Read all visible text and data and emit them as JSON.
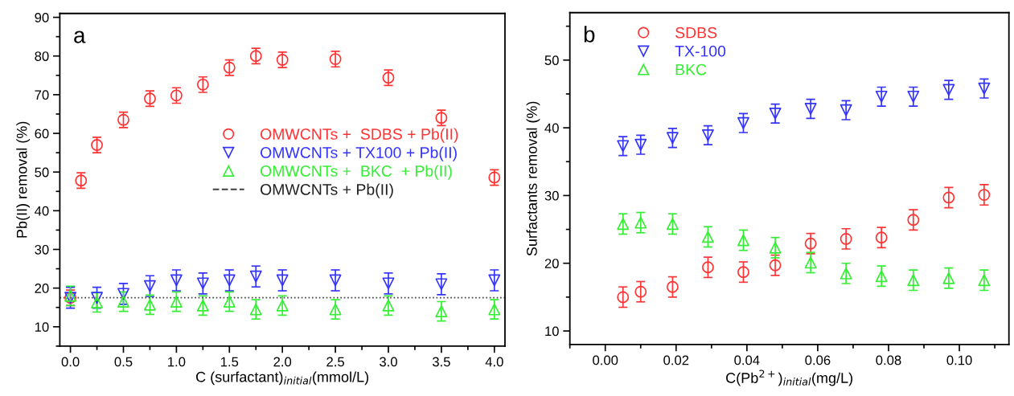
{
  "chart_data": [
    {
      "type": "scatter",
      "xlabel": "C (surfactant)$_{initial}$(mmol/L)",
      "ylabel": "Pb(II) removal (%)",
      "annotations": [
        "a"
      ],
      "xlim": [
        -0.1,
        4.1
      ],
      "xticks": [
        {
          "value": 0,
          "label": "0.0"
        },
        {
          "value": 0.5,
          "label": "0.5"
        },
        {
          "value": 1,
          "label": "1.0"
        },
        {
          "value": 1.5,
          "label": "1.5"
        },
        {
          "value": 2,
          "label": "2.0"
        },
        {
          "value": 2.5,
          "label": "2.5"
        },
        {
          "value": 3,
          "label": "3.0"
        },
        {
          "value": 3.5,
          "label": "3.5"
        },
        {
          "value": 4,
          "label": "4.0"
        }
      ],
      "ylim": [
        5,
        91
      ],
      "yticks": [
        10,
        20,
        30,
        40,
        50,
        60,
        70,
        80,
        90
      ],
      "grid": false,
      "legend": "center",
      "ref_lines": [
        {
          "axis": "y",
          "value": 17.5,
          "label": "OMWCNTs + Pb(II)",
          "color": "#404040",
          "line_style": "dashed"
        }
      ],
      "series": [
        {
          "name": "OMWCNTs +  SDBS + Pb(II)",
          "color": "#ff3333",
          "marker": "circle",
          "x": [
            0,
            0.1,
            0.25,
            0.5,
            0.75,
            1.0,
            1.25,
            1.5,
            1.75,
            2.0,
            2.5,
            3.0,
            3.5,
            4.0
          ],
          "values": [
            17.5,
            47.8,
            57,
            63.5,
            69,
            69.8,
            72.6,
            77,
            80,
            79,
            79.2,
            74.4,
            64,
            48.6
          ],
          "errors": [
            2,
            2,
            2,
            2,
            2,
            2,
            2,
            2,
            2,
            2,
            2,
            2,
            2,
            2
          ]
        },
        {
          "name": "OMWCNTs + TX100 + Pb(II)",
          "color": "#3333ff",
          "marker": "triangle-down",
          "x": [
            0,
            0.25,
            0.5,
            0.75,
            1.0,
            1.25,
            1.5,
            1.75,
            2.0,
            2.5,
            3.0,
            3.5,
            4.0
          ],
          "values": [
            17.5,
            17.5,
            18.5,
            20.5,
            22,
            21.2,
            22,
            23,
            22,
            22,
            21.2,
            21,
            22
          ],
          "errors": [
            2.7,
            2.7,
            2.7,
            2.7,
            2.7,
            2.7,
            2.7,
            2.7,
            2.7,
            2.7,
            2.7,
            2.7,
            2.7
          ]
        },
        {
          "name": "OMWCNTs +  BKC  + Pb(II)",
          "color": "#33ee33",
          "marker": "triangle",
          "x": [
            0,
            0.25,
            0.5,
            0.75,
            1.0,
            1.25,
            1.5,
            1.75,
            2.0,
            2.5,
            3.0,
            3.5,
            4.0
          ],
          "values": [
            18,
            16.3,
            16.5,
            15.7,
            16.5,
            15.5,
            16.5,
            14.5,
            15.5,
            14.5,
            15.5,
            14,
            14.5
          ],
          "errors": [
            2.5,
            2.5,
            2.5,
            2.5,
            2.5,
            2.5,
            2.5,
            2.5,
            2.5,
            2.5,
            2.5,
            2.5,
            2.5
          ]
        }
      ]
    },
    {
      "type": "scatter",
      "xlabel": "C(Pb$^{2+}$)$_{initial}$(mg/L)",
      "ylabel": "Surfactants removal (%)",
      "annotations": [
        "b"
      ],
      "xlim": [
        -0.01,
        0.114
      ],
      "xticks": [
        {
          "value": 0,
          "label": "0.00"
        },
        {
          "value": 0.02,
          "label": "0.02"
        },
        {
          "value": 0.04,
          "label": "0.04"
        },
        {
          "value": 0.06,
          "label": "0.06"
        },
        {
          "value": 0.08,
          "label": "0.08"
        },
        {
          "value": 0.1,
          "label": "0.10"
        }
      ],
      "ylim": [
        8,
        57
      ],
      "yticks": [
        10,
        20,
        30,
        40,
        50
      ],
      "grid": false,
      "legend": "top left",
      "series": [
        {
          "name": "SDBS",
          "color": "#ff3333",
          "marker": "circle",
          "x": [
            0.005,
            0.01,
            0.019,
            0.029,
            0.039,
            0.048,
            0.058,
            0.068,
            0.078,
            0.087,
            0.097,
            0.107
          ],
          "values": [
            15.0,
            15.8,
            16.5,
            19.4,
            18.7,
            19.7,
            22.9,
            23.6,
            23.8,
            26.4,
            29.7,
            30.1
          ],
          "errors": [
            1.5,
            1.5,
            1.5,
            1.5,
            1.5,
            1.5,
            1.5,
            1.5,
            1.5,
            1.5,
            1.5,
            1.5
          ]
        },
        {
          "name": "TX-100",
          "color": "#3333ff",
          "marker": "triangle-down",
          "x": [
            0.005,
            0.01,
            0.019,
            0.029,
            0.039,
            0.048,
            0.058,
            0.068,
            0.078,
            0.087,
            0.097,
            0.107
          ],
          "values": [
            37.3,
            37.5,
            38.5,
            38.9,
            40.7,
            42.1,
            42.8,
            42.6,
            44.6,
            44.6,
            45.6,
            45.8
          ],
          "errors": [
            1.4,
            1.4,
            1.4,
            1.4,
            1.4,
            1.4,
            1.4,
            1.4,
            1.4,
            1.4,
            1.4,
            1.4
          ]
        },
        {
          "name": "BKC",
          "color": "#33ee33",
          "marker": "triangle",
          "x": [
            0.005,
            0.01,
            0.019,
            0.029,
            0.039,
            0.048,
            0.058,
            0.068,
            0.078,
            0.087,
            0.097,
            0.107
          ],
          "values": [
            25.8,
            26.0,
            25.8,
            23.9,
            23.4,
            22.3,
            20.1,
            18.5,
            18.1,
            17.5,
            17.8,
            17.5
          ],
          "errors": [
            1.5,
            1.5,
            1.5,
            1.5,
            1.5,
            1.5,
            1.5,
            1.5,
            1.5,
            1.5,
            1.5,
            1.5
          ]
        }
      ]
    }
  ]
}
